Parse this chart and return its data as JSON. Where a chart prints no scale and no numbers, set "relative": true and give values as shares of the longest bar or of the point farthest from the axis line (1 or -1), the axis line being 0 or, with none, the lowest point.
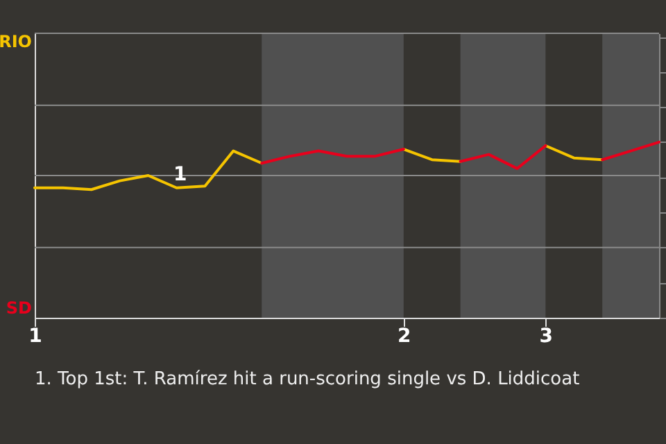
{
  "chart_data": {
    "type": "line",
    "categories": [
      "1",
      null,
      null,
      null,
      null,
      null,
      null,
      null,
      null,
      null,
      null,
      null,
      null,
      "2",
      null,
      null,
      null,
      null,
      "3",
      null,
      null,
      null,
      null
    ],
    "relative": true,
    "series": [
      {
        "color": "#f5c400",
        "values": [
          0.74,
          0.74,
          0.73,
          0.78,
          0.81,
          0.74,
          0.75,
          0.95,
          0.88,
          null,
          null,
          null,
          null,
          0.96,
          0.9,
          0.89,
          null,
          null,
          0.98,
          0.91,
          0.9,
          null,
          null
        ]
      },
      {
        "color": "#e8001c",
        "values": [
          null,
          null,
          null,
          null,
          null,
          null,
          null,
          null,
          0.88,
          0.92,
          0.95,
          0.92,
          0.92,
          0.96,
          null,
          0.89,
          0.93,
          0.85,
          0.98,
          null,
          0.9,
          0.95,
          1
        ]
      }
    ],
    "marker": "none",
    "line_style": "solid",
    "ref_lines": [
      {
        "axis": "y",
        "value": 0.4,
        "color": "#8a8a8a"
      },
      {
        "axis": "y",
        "value": 0.81,
        "color": "#8a8a8a"
      },
      {
        "axis": "y",
        "value": 1.21,
        "color": "#8a8a8a"
      },
      {
        "axis": "y",
        "value": 1.62,
        "color": "#8a8a8a"
      }
    ],
    "annotations": [
      "RIO",
      "SD",
      "1",
      "1. Top 1st: T. Ramírez hit a run-scoring single vs D. Liddicoat"
    ]
  }
}
